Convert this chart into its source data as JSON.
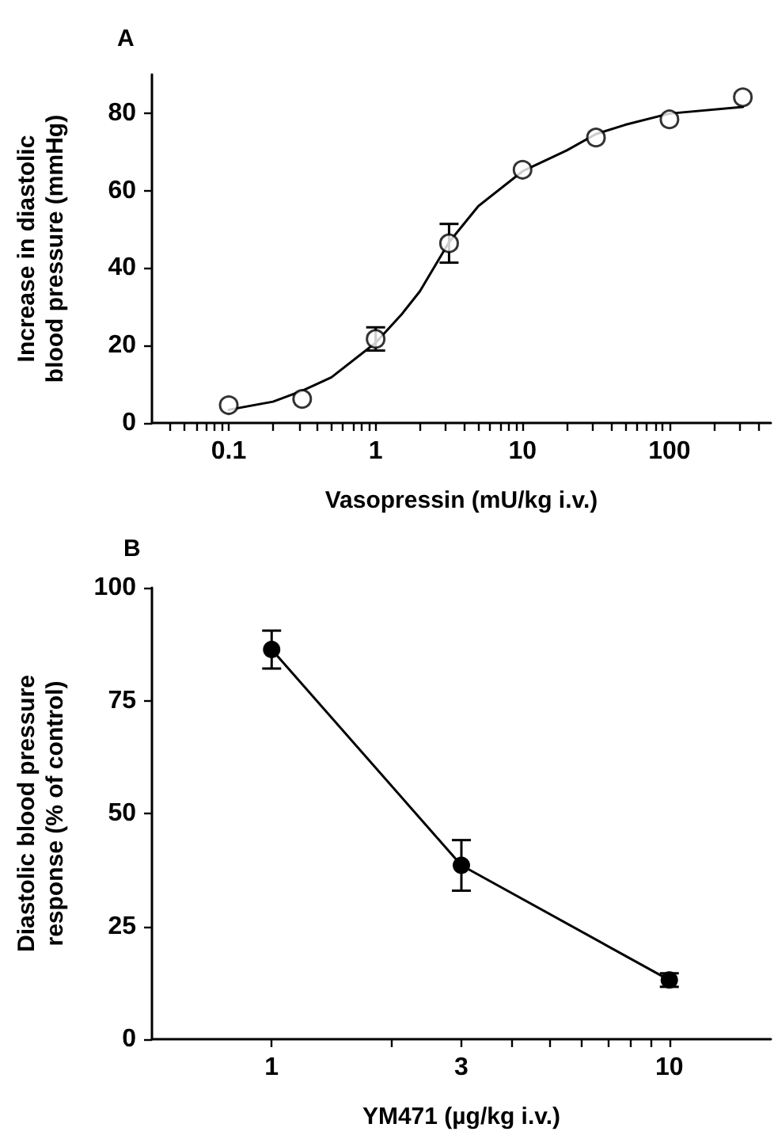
{
  "chart_data": [
    {
      "type": "scatter",
      "title": "A",
      "xlabel": "Vasopressin (mU/kg i.v.)",
      "ylabel": "Increase in diastolic\nblood pressure (mmHg)",
      "log": "x",
      "xlim": [
        0.03,
        490
      ],
      "ylim": [
        0,
        90
      ],
      "xticks": [
        {
          "value": 0.04,
          "label": null
        },
        {
          "value": 0.05,
          "label": null
        },
        {
          "value": 0.06,
          "label": null
        },
        {
          "value": 0.07,
          "label": null
        },
        {
          "value": 0.08,
          "label": null
        },
        {
          "value": 0.09,
          "label": null
        },
        0.1,
        {
          "value": 0.2,
          "label": null
        },
        {
          "value": 0.3,
          "label": null
        },
        {
          "value": 0.4,
          "label": null
        },
        {
          "value": 0.5,
          "label": null
        },
        {
          "value": 0.6,
          "label": null
        },
        {
          "value": 0.7,
          "label": null
        },
        {
          "value": 0.8,
          "label": null
        },
        {
          "value": 0.9,
          "label": null
        },
        1,
        {
          "value": 2,
          "label": null
        },
        {
          "value": 3,
          "label": null
        },
        {
          "value": 4,
          "label": null
        },
        {
          "value": 5,
          "label": null
        },
        {
          "value": 6,
          "label": null
        },
        {
          "value": 7,
          "label": null
        },
        {
          "value": 8,
          "label": null
        },
        {
          "value": 9,
          "label": null
        },
        10,
        {
          "value": 20,
          "label": null
        },
        {
          "value": 30,
          "label": null
        },
        {
          "value": 40,
          "label": null
        },
        {
          "value": 50,
          "label": null
        },
        {
          "value": 60,
          "label": null
        },
        {
          "value": 70,
          "label": null
        },
        {
          "value": 80,
          "label": null
        },
        {
          "value": 90,
          "label": null
        },
        100,
        {
          "value": 200,
          "label": null
        },
        {
          "value": 300,
          "label": null
        },
        {
          "value": 400,
          "label": null
        }
      ],
      "yticks": [
        0,
        20,
        40,
        60,
        80
      ],
      "grid": false,
      "marker": "circle",
      "series": [
        {
          "color": "#000000",
          "x": [
            0.1,
            0.316,
            1,
            3.16,
            10,
            31.6,
            100,
            316
          ],
          "values": [
            4.6,
            6.2,
            21.7,
            46.4,
            65.4,
            73.7,
            78.4,
            84.1
          ],
          "errors": [
            null,
            null,
            3,
            5,
            null,
            null,
            null,
            null
          ]
        },
        {
          "type": "line",
          "color": "#000000",
          "x": [
            0.1,
            0.2,
            0.316,
            0.5,
            1,
            1.5,
            2,
            3.16,
            5,
            10,
            20,
            31.6,
            50,
            100,
            316
          ],
          "values": [
            3.4,
            5.5,
            8.3,
            11.8,
            20.7,
            28,
            34,
            46.7,
            56,
            65,
            70.4,
            74.6,
            77,
            79.9,
            81.6
          ],
          "marker": "none"
        }
      ]
    },
    {
      "type": "line",
      "title": "B",
      "xlabel": "YM471 (µg/kg i.v.)",
      "ylabel": "Diastolic blood pressure\nresponse (% of control)",
      "log": "x",
      "xlim": [
        0.5,
        18
      ],
      "ylim": [
        0,
        100
      ],
      "xticks": [
        1,
        {
          "value": 2,
          "label": null
        },
        3,
        {
          "value": 4,
          "label": null
        },
        {
          "value": 5,
          "label": null
        },
        {
          "value": 6,
          "label": null
        },
        {
          "value": 7,
          "label": null
        },
        {
          "value": 8,
          "label": null
        },
        {
          "value": 9,
          "label": null
        },
        10
      ],
      "yticks": [
        0,
        25,
        50,
        75,
        100
      ],
      "grid": false,
      "marker": "circle",
      "series": [
        {
          "color": "#000000",
          "x": [
            1,
            3,
            10
          ],
          "values": [
            86.3,
            38.5,
            13.1
          ],
          "errors": [
            4.2,
            5.6,
            1.5
          ]
        }
      ]
    }
  ]
}
